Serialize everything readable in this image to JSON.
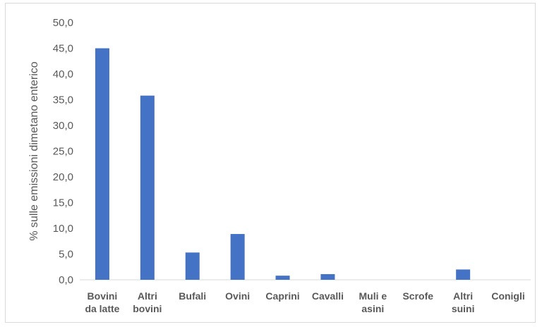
{
  "chart_data": {
    "type": "bar",
    "ylabel": "% sulle emissioni dimetano enterico",
    "xlabel": "",
    "ylim": [
      0,
      50
    ],
    "y_ticks": [
      "0,0",
      "5,0",
      "10,0",
      "15,0",
      "20,0",
      "25,0",
      "30,0",
      "35,0",
      "40,0",
      "45,0",
      "50,0"
    ],
    "categories": [
      [
        "Bovini",
        "da latte"
      ],
      [
        "Altri",
        "bovini"
      ],
      [
        "Bufali"
      ],
      [
        "Ovini"
      ],
      [
        "Caprini"
      ],
      [
        "Cavalli"
      ],
      [
        "Muli e",
        "asini"
      ],
      [
        "Scrofe"
      ],
      [
        "Altri",
        "suini"
      ],
      [
        "Conigli"
      ]
    ],
    "values": [
      45.0,
      35.8,
      5.3,
      8.9,
      0.8,
      1.1,
      0.0,
      0.0,
      2.0,
      0.0
    ],
    "bar_color": "#4472C4",
    "grid": false,
    "legend": "none"
  }
}
